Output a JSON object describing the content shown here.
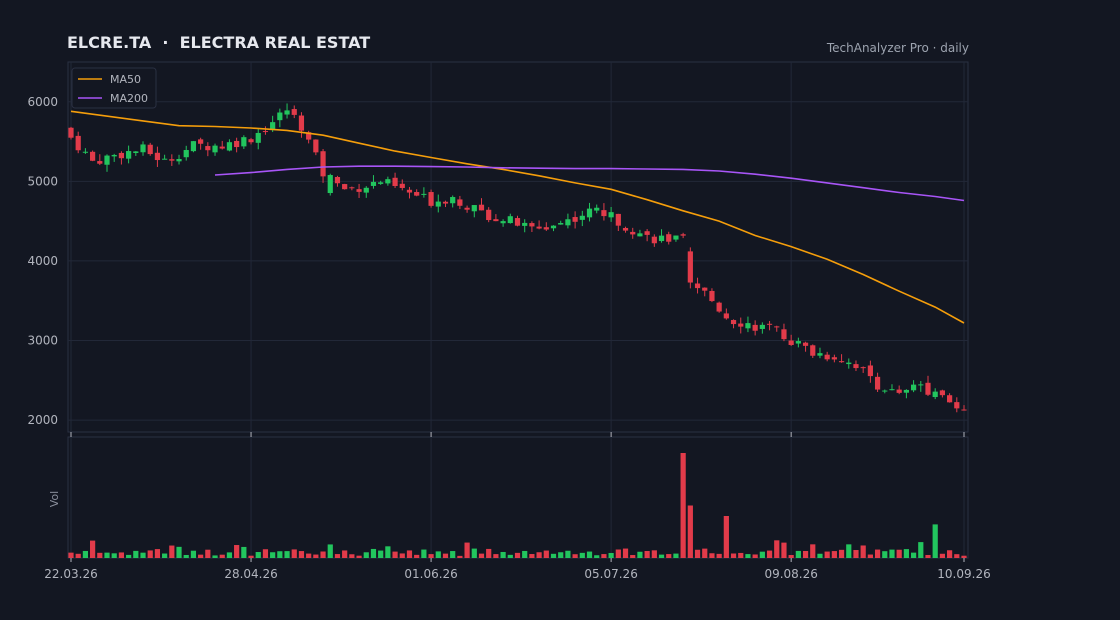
{
  "header": {
    "title": "ELCRE.TA  ·  ELECTRA REAL ESTAT",
    "provider": "TechAnalyzer Pro · daily"
  },
  "colors": {
    "background": "#131722",
    "grid": "#222838",
    "frame": "#2a3042",
    "text": "#b2b5be",
    "title": "#e6e8ee",
    "up": "#22c55e",
    "down": "#e23b4a",
    "ma50": "#f59e0b",
    "ma200": "#a855f7"
  },
  "chart_data": {
    "type": "candlestick",
    "title": "ELCRE.TA  ·  ELECTRA REAL ESTAT",
    "legend": {
      "placement": "top-left",
      "entries": [
        "MA50",
        "MA200"
      ]
    },
    "price_axis": {
      "ticks": [
        2000,
        3000,
        4000,
        5000,
        6000
      ],
      "ylim": [
        1850,
        6500
      ]
    },
    "volume_axis": {
      "label": "Vol"
    },
    "date_ticks": [
      {
        "label": "22.03.26",
        "index": 0
      },
      {
        "label": "28.04.26",
        "index": 25
      },
      {
        "label": "01.06.26",
        "index": 50
      },
      {
        "label": "05.07.26",
        "index": 75
      },
      {
        "label": "09.08.26",
        "index": 100
      },
      {
        "label": "10.09.26",
        "index": 124
      }
    ],
    "grid": true,
    "gaps_after_index": [
      35,
      85
    ],
    "close_anchors": [
      [
        0,
        5550
      ],
      [
        3,
        5250
      ],
      [
        7,
        5350
      ],
      [
        10,
        5400
      ],
      [
        13,
        5250
      ],
      [
        17,
        5450
      ],
      [
        21,
        5450
      ],
      [
        25,
        5550
      ],
      [
        28,
        5750
      ],
      [
        30,
        5900
      ],
      [
        32,
        5700
      ],
      [
        35,
        5100
      ],
      [
        38,
        4900
      ],
      [
        41,
        4950
      ],
      [
        43,
        5000
      ],
      [
        47,
        4850
      ],
      [
        50,
        4750
      ],
      [
        53,
        4800
      ],
      [
        57,
        4600
      ],
      [
        61,
        4500
      ],
      [
        64,
        4400
      ],
      [
        67,
        4450
      ],
      [
        70,
        4550
      ],
      [
        73,
        4650
      ],
      [
        76,
        4500
      ],
      [
        80,
        4300
      ],
      [
        85,
        4250
      ],
      [
        86,
        3700
      ],
      [
        88,
        3600
      ],
      [
        91,
        3300
      ],
      [
        94,
        3200
      ],
      [
        97,
        3150
      ],
      [
        100,
        3000
      ],
      [
        103,
        2850
      ],
      [
        106,
        2800
      ],
      [
        109,
        2700
      ],
      [
        112,
        2450
      ],
      [
        115,
        2300
      ],
      [
        118,
        2450
      ],
      [
        121,
        2250
      ],
      [
        124,
        2150
      ]
    ],
    "ma50_points": [
      [
        0,
        5880
      ],
      [
        10,
        5760
      ],
      [
        15,
        5700
      ],
      [
        20,
        5690
      ],
      [
        25,
        5670
      ],
      [
        30,
        5640
      ],
      [
        35,
        5580
      ],
      [
        40,
        5480
      ],
      [
        45,
        5380
      ],
      [
        50,
        5300
      ],
      [
        55,
        5220
      ],
      [
        60,
        5150
      ],
      [
        65,
        5070
      ],
      [
        70,
        4980
      ],
      [
        75,
        4900
      ],
      [
        80,
        4770
      ],
      [
        85,
        4630
      ],
      [
        90,
        4500
      ],
      [
        95,
        4320
      ],
      [
        100,
        4180
      ],
      [
        105,
        4020
      ],
      [
        110,
        3830
      ],
      [
        115,
        3620
      ],
      [
        120,
        3420
      ],
      [
        124,
        3220
      ]
    ],
    "ma200_points": [
      [
        20,
        5080
      ],
      [
        25,
        5110
      ],
      [
        30,
        5150
      ],
      [
        35,
        5180
      ],
      [
        40,
        5190
      ],
      [
        45,
        5190
      ],
      [
        50,
        5185
      ],
      [
        55,
        5180
      ],
      [
        60,
        5170
      ],
      [
        65,
        5165
      ],
      [
        70,
        5160
      ],
      [
        75,
        5160
      ],
      [
        80,
        5155
      ],
      [
        85,
        5150
      ],
      [
        90,
        5130
      ],
      [
        95,
        5090
      ],
      [
        100,
        5040
      ],
      [
        105,
        4980
      ],
      [
        110,
        4920
      ],
      [
        115,
        4860
      ],
      [
        120,
        4810
      ],
      [
        124,
        4760
      ]
    ],
    "volume_spikes": [
      {
        "index": 85,
        "relative": 1.0
      },
      {
        "index": 86,
        "relative": 0.5
      },
      {
        "index": 91,
        "relative": 0.4
      },
      {
        "index": 120,
        "relative": 0.32
      }
    ]
  }
}
